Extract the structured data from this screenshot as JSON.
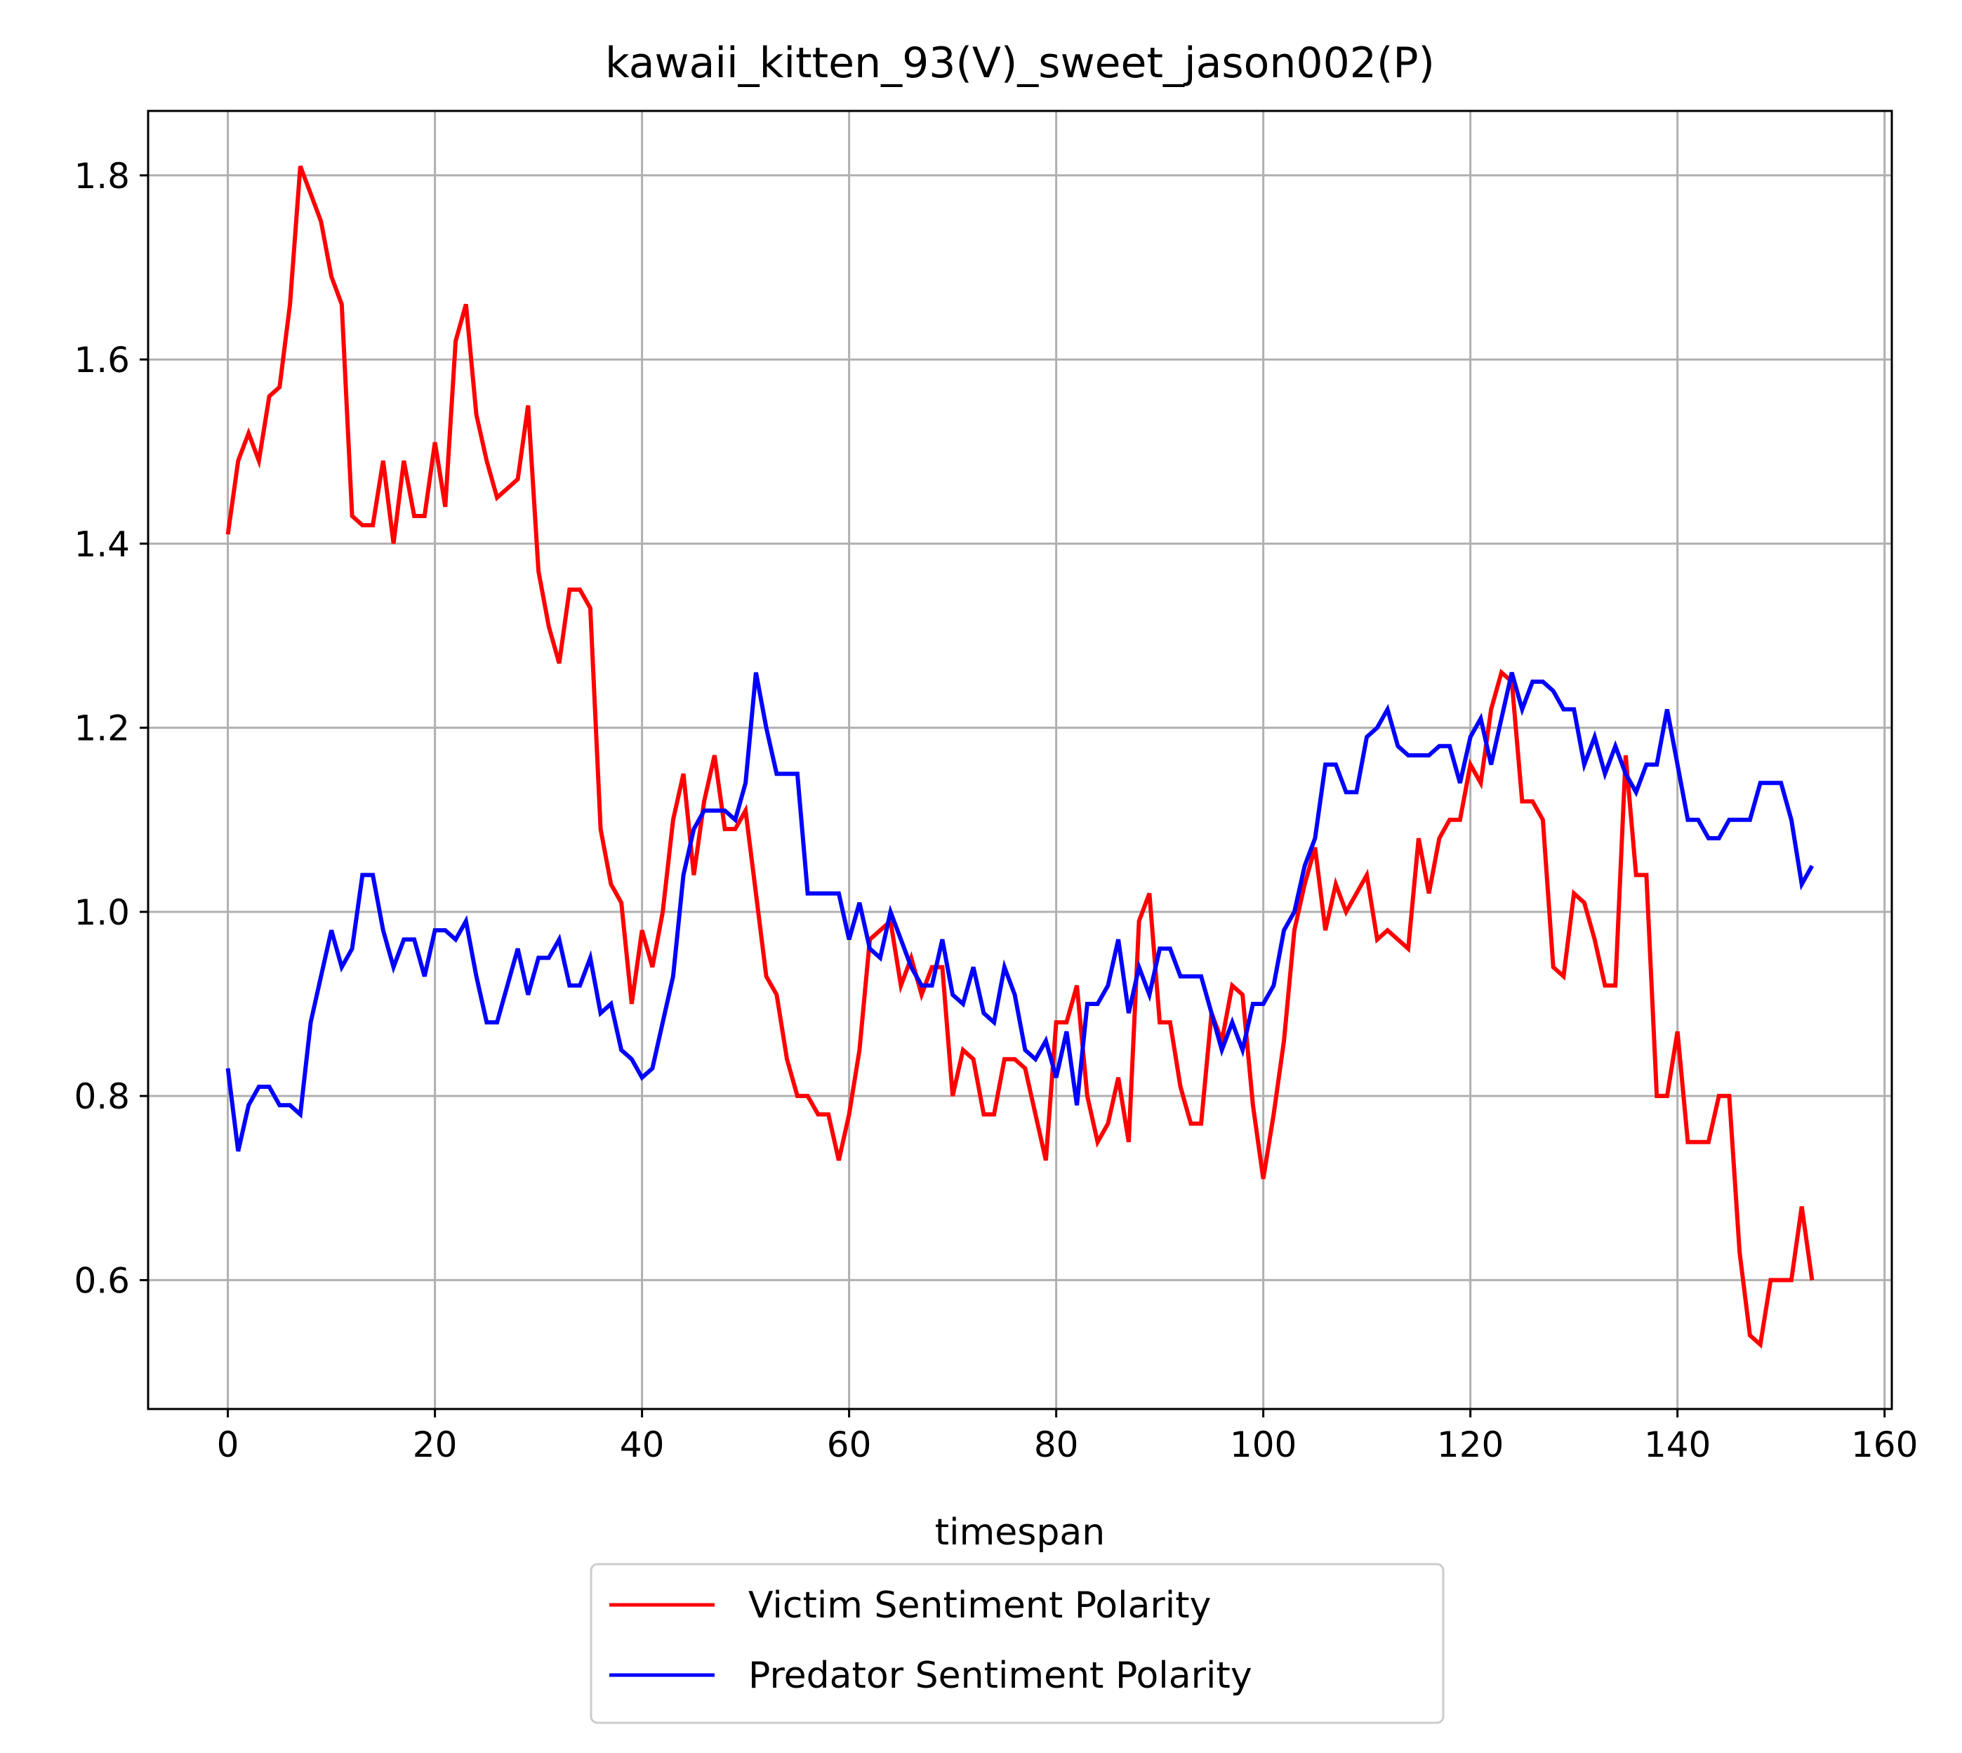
{
  "chart_data": {
    "type": "line",
    "title": "kawaii_kitten_93(V)_sweet_jason002(P)",
    "xlabel": "timespan",
    "ylabel": "",
    "xlim": [
      -7.7,
      160.7
    ],
    "ylim": [
      0.46,
      1.87
    ],
    "xticks": [
      0,
      20,
      40,
      60,
      80,
      100,
      120,
      140,
      160
    ],
    "yticks": [
      0.6,
      0.8,
      1.0,
      1.2,
      1.4,
      1.6,
      1.8
    ],
    "xtick_labels": [
      "0",
      "20",
      "40",
      "60",
      "80",
      "100",
      "120",
      "140",
      "160"
    ],
    "ytick_labels": [
      "0.6",
      "0.8",
      "1.0",
      "1.2",
      "1.4",
      "1.6",
      "1.8"
    ],
    "grid": true,
    "legend_position": "below plot, centered",
    "series": [
      {
        "name": "Victim Sentiment Polarity",
        "color": "#ff0000",
        "x_start": 0,
        "x_step": 1,
        "values": [
          1.41,
          1.49,
          1.52,
          1.49,
          1.56,
          1.57,
          1.66,
          1.81,
          1.78,
          1.75,
          1.69,
          1.66,
          1.43,
          1.42,
          1.42,
          1.49,
          1.4,
          1.49,
          1.43,
          1.43,
          1.51,
          1.44,
          1.62,
          1.66,
          1.54,
          1.49,
          1.45,
          1.46,
          1.47,
          1.55,
          1.37,
          1.31,
          1.27,
          1.35,
          1.35,
          1.33,
          1.09,
          1.03,
          1.01,
          0.9,
          0.98,
          0.94,
          1.0,
          1.1,
          1.15,
          1.04,
          1.12,
          1.17,
          1.09,
          1.09,
          1.11,
          1.02,
          0.93,
          0.91,
          0.84,
          0.8,
          0.8,
          0.78,
          0.78,
          0.73,
          0.78,
          0.85,
          0.97,
          0.98,
          0.99,
          0.92,
          0.95,
          0.91,
          0.94,
          0.94,
          0.8,
          0.85,
          0.84,
          0.78,
          0.78,
          0.84,
          0.84,
          0.83,
          0.78,
          0.73,
          0.88,
          0.88,
          0.92,
          0.8,
          0.75,
          0.77,
          0.82,
          0.75,
          0.99,
          1.02,
          0.88,
          0.88,
          0.81,
          0.77,
          0.77,
          0.89,
          0.86,
          0.92,
          0.91,
          0.79,
          0.71,
          0.78,
          0.86,
          0.98,
          1.03,
          1.07,
          0.98,
          1.03,
          1.0,
          1.02,
          1.04,
          0.97,
          0.98,
          0.97,
          0.96,
          1.08,
          1.02,
          1.08,
          1.1,
          1.1,
          1.16,
          1.14,
          1.22,
          1.26,
          1.25,
          1.12,
          1.12,
          1.1,
          0.94,
          0.93,
          1.02,
          1.01,
          0.97,
          0.92,
          0.92,
          1.17,
          1.04,
          1.04,
          0.8,
          0.8,
          0.87,
          0.75,
          0.75,
          0.75,
          0.8,
          0.8,
          0.63,
          0.54,
          0.53,
          0.6,
          0.6,
          0.6,
          0.68,
          0.6
        ]
      },
      {
        "name": "Predator Sentiment Polarity",
        "color": "#0000ff",
        "x_start": 0,
        "x_step": 1,
        "values": [
          0.83,
          0.74,
          0.79,
          0.81,
          0.81,
          0.79,
          0.79,
          0.78,
          0.88,
          0.93,
          0.98,
          0.94,
          0.96,
          1.04,
          1.04,
          0.98,
          0.94,
          0.97,
          0.97,
          0.93,
          0.98,
          0.98,
          0.97,
          0.99,
          0.93,
          0.88,
          0.88,
          0.92,
          0.96,
          0.91,
          0.95,
          0.95,
          0.97,
          0.92,
          0.92,
          0.95,
          0.89,
          0.9,
          0.85,
          0.84,
          0.82,
          0.83,
          0.88,
          0.93,
          1.04,
          1.09,
          1.11,
          1.11,
          1.11,
          1.1,
          1.14,
          1.26,
          1.2,
          1.15,
          1.15,
          1.15,
          1.02,
          1.02,
          1.02,
          1.02,
          0.97,
          1.01,
          0.96,
          0.95,
          1.0,
          0.97,
          0.94,
          0.92,
          0.92,
          0.97,
          0.91,
          0.9,
          0.94,
          0.89,
          0.88,
          0.94,
          0.91,
          0.85,
          0.84,
          0.86,
          0.82,
          0.87,
          0.79,
          0.9,
          0.9,
          0.92,
          0.97,
          0.89,
          0.94,
          0.91,
          0.96,
          0.96,
          0.93,
          0.93,
          0.93,
          0.89,
          0.85,
          0.88,
          0.85,
          0.9,
          0.9,
          0.92,
          0.98,
          1.0,
          1.05,
          1.08,
          1.16,
          1.16,
          1.13,
          1.13,
          1.19,
          1.2,
          1.22,
          1.18,
          1.17,
          1.17,
          1.17,
          1.18,
          1.18,
          1.14,
          1.19,
          1.21,
          1.16,
          1.21,
          1.26,
          1.22,
          1.25,
          1.25,
          1.24,
          1.22,
          1.22,
          1.16,
          1.19,
          1.15,
          1.18,
          1.15,
          1.13,
          1.16,
          1.16,
          1.22,
          1.16,
          1.1,
          1.1,
          1.08,
          1.08,
          1.1,
          1.1,
          1.1,
          1.14,
          1.14,
          1.14,
          1.1,
          1.03,
          1.05
        ]
      }
    ]
  }
}
